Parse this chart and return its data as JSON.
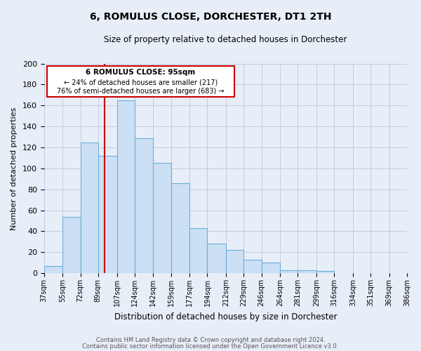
{
  "title": "6, ROMULUS CLOSE, DORCHESTER, DT1 2TH",
  "subtitle": "Size of property relative to detached houses in Dorchester",
  "xlabel": "Distribution of detached houses by size in Dorchester",
  "ylabel": "Number of detached properties",
  "bar_values": [
    7,
    54,
    125,
    112,
    165,
    129,
    105,
    86,
    43,
    28,
    22,
    13,
    10,
    3,
    3,
    2
  ],
  "bin_left_edges": [
    37,
    55,
    72,
    89,
    107,
    124,
    142,
    159,
    177,
    194,
    212,
    229,
    246,
    264,
    281,
    299
  ],
  "bin_right_edges": [
    55,
    72,
    89,
    107,
    124,
    142,
    159,
    177,
    194,
    212,
    229,
    246,
    264,
    281,
    299,
    316
  ],
  "all_tick_positions": [
    37,
    55,
    72,
    89,
    107,
    124,
    142,
    159,
    177,
    194,
    212,
    229,
    246,
    264,
    281,
    299,
    316,
    334,
    351,
    369,
    386
  ],
  "tick_labels": [
    "37sqm",
    "55sqm",
    "72sqm",
    "89sqm",
    "107sqm",
    "124sqm",
    "142sqm",
    "159sqm",
    "177sqm",
    "194sqm",
    "212sqm",
    "229sqm",
    "246sqm",
    "264sqm",
    "281sqm",
    "299sqm",
    "316sqm",
    "334sqm",
    "351sqm",
    "369sqm",
    "386sqm"
  ],
  "bar_color": "#cce0f5",
  "bar_edge_color": "#6aaed6",
  "grid_color": "#b8c8dc",
  "background_color": "#e8eef8",
  "red_line_x": 95,
  "annotation_title": "6 ROMULUS CLOSE: 95sqm",
  "annotation_line1": "← 24% of detached houses are smaller (217)",
  "annotation_line2": "76% of semi-detached houses are larger (683) →",
  "annotation_box_color": "#ffffff",
  "annotation_box_edge": "#cc0000",
  "footer_line1": "Contains HM Land Registry data © Crown copyright and database right 2024.",
  "footer_line2": "Contains public sector information licensed under the Open Government Licence v3.0.",
  "ylim": [
    0,
    200
  ],
  "xlim_left": 37,
  "xlim_right": 386,
  "figsize": [
    6.0,
    5.0
  ],
  "dpi": 100
}
